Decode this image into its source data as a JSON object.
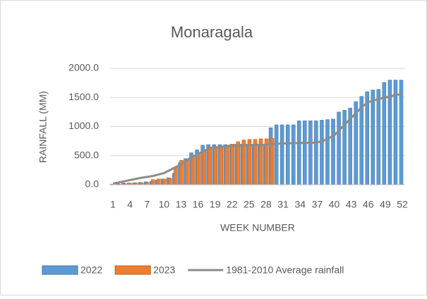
{
  "chart_data": {
    "type": "bar",
    "title": "Monaragala",
    "y_label": "RAINFALL (MM)",
    "x_label": "WEEK NUMBER",
    "categories": [
      "1",
      null,
      null,
      "4",
      null,
      null,
      "7",
      null,
      null,
      "10",
      null,
      null,
      "13",
      null,
      null,
      "16",
      null,
      null,
      "19",
      null,
      null,
      "22",
      null,
      null,
      "25",
      null,
      null,
      "28",
      null,
      null,
      "31",
      null,
      null,
      "34",
      null,
      null,
      "37",
      null,
      null,
      "40",
      null,
      null,
      "43",
      null,
      null,
      "46",
      null,
      null,
      "49",
      null,
      null,
      "52"
    ],
    "series": [
      {
        "name": "2022",
        "type": "bar",
        "color": "#5b9bd5",
        "values": [
          10,
          20,
          30,
          30,
          35,
          40,
          50,
          60,
          80,
          100,
          120,
          200,
          380,
          450,
          550,
          600,
          680,
          690,
          690,
          690,
          690,
          690,
          700,
          700,
          700,
          700,
          700,
          700,
          980,
          1030,
          1030,
          1030,
          1030,
          1100,
          1100,
          1100,
          1100,
          1110,
          1120,
          1130,
          1250,
          1280,
          1320,
          1430,
          1520,
          1600,
          1630,
          1640,
          1760,
          1800,
          1800,
          1800
        ]
      },
      {
        "name": "2023",
        "type": "bar",
        "color": "#ed7d31",
        "values": [
          5,
          10,
          20,
          25,
          30,
          35,
          40,
          90,
          100,
          100,
          110,
          300,
          420,
          430,
          470,
          520,
          580,
          650,
          660,
          670,
          680,
          700,
          740,
          770,
          780,
          780,
          790,
          790,
          800,
          null,
          null,
          null,
          null,
          null,
          null,
          null,
          null,
          null,
          null,
          null,
          null,
          null,
          null,
          null,
          null,
          null,
          null,
          null,
          null,
          null,
          null,
          null
        ]
      },
      {
        "name": "1981-2010 Average rainfall",
        "type": "line",
        "color": "#8c8c8c",
        "values": [
          20,
          40,
          60,
          80,
          100,
          120,
          135,
          150,
          175,
          200,
          250,
          300,
          350,
          420,
          480,
          530,
          580,
          620,
          640,
          650,
          660,
          665,
          670,
          675,
          680,
          685,
          688,
          690,
          700,
          705,
          710,
          712,
          715,
          718,
          720,
          720,
          730,
          750,
          800,
          850,
          950,
          1050,
          1150,
          1250,
          1350,
          1420,
          1450,
          1480,
          1500,
          1520,
          1550,
          1550
        ]
      }
    ],
    "ylim": [
      0,
      2000
    ],
    "yticks": [
      {
        "value": 0,
        "label": "0.0"
      },
      {
        "value": 500,
        "label": "500.0"
      },
      {
        "value": 1000,
        "label": "1000.0"
      },
      {
        "value": 1500,
        "label": "1500.0"
      },
      {
        "value": 2000,
        "label": "2000.0"
      }
    ],
    "grid": true,
    "legend": "bottom"
  }
}
